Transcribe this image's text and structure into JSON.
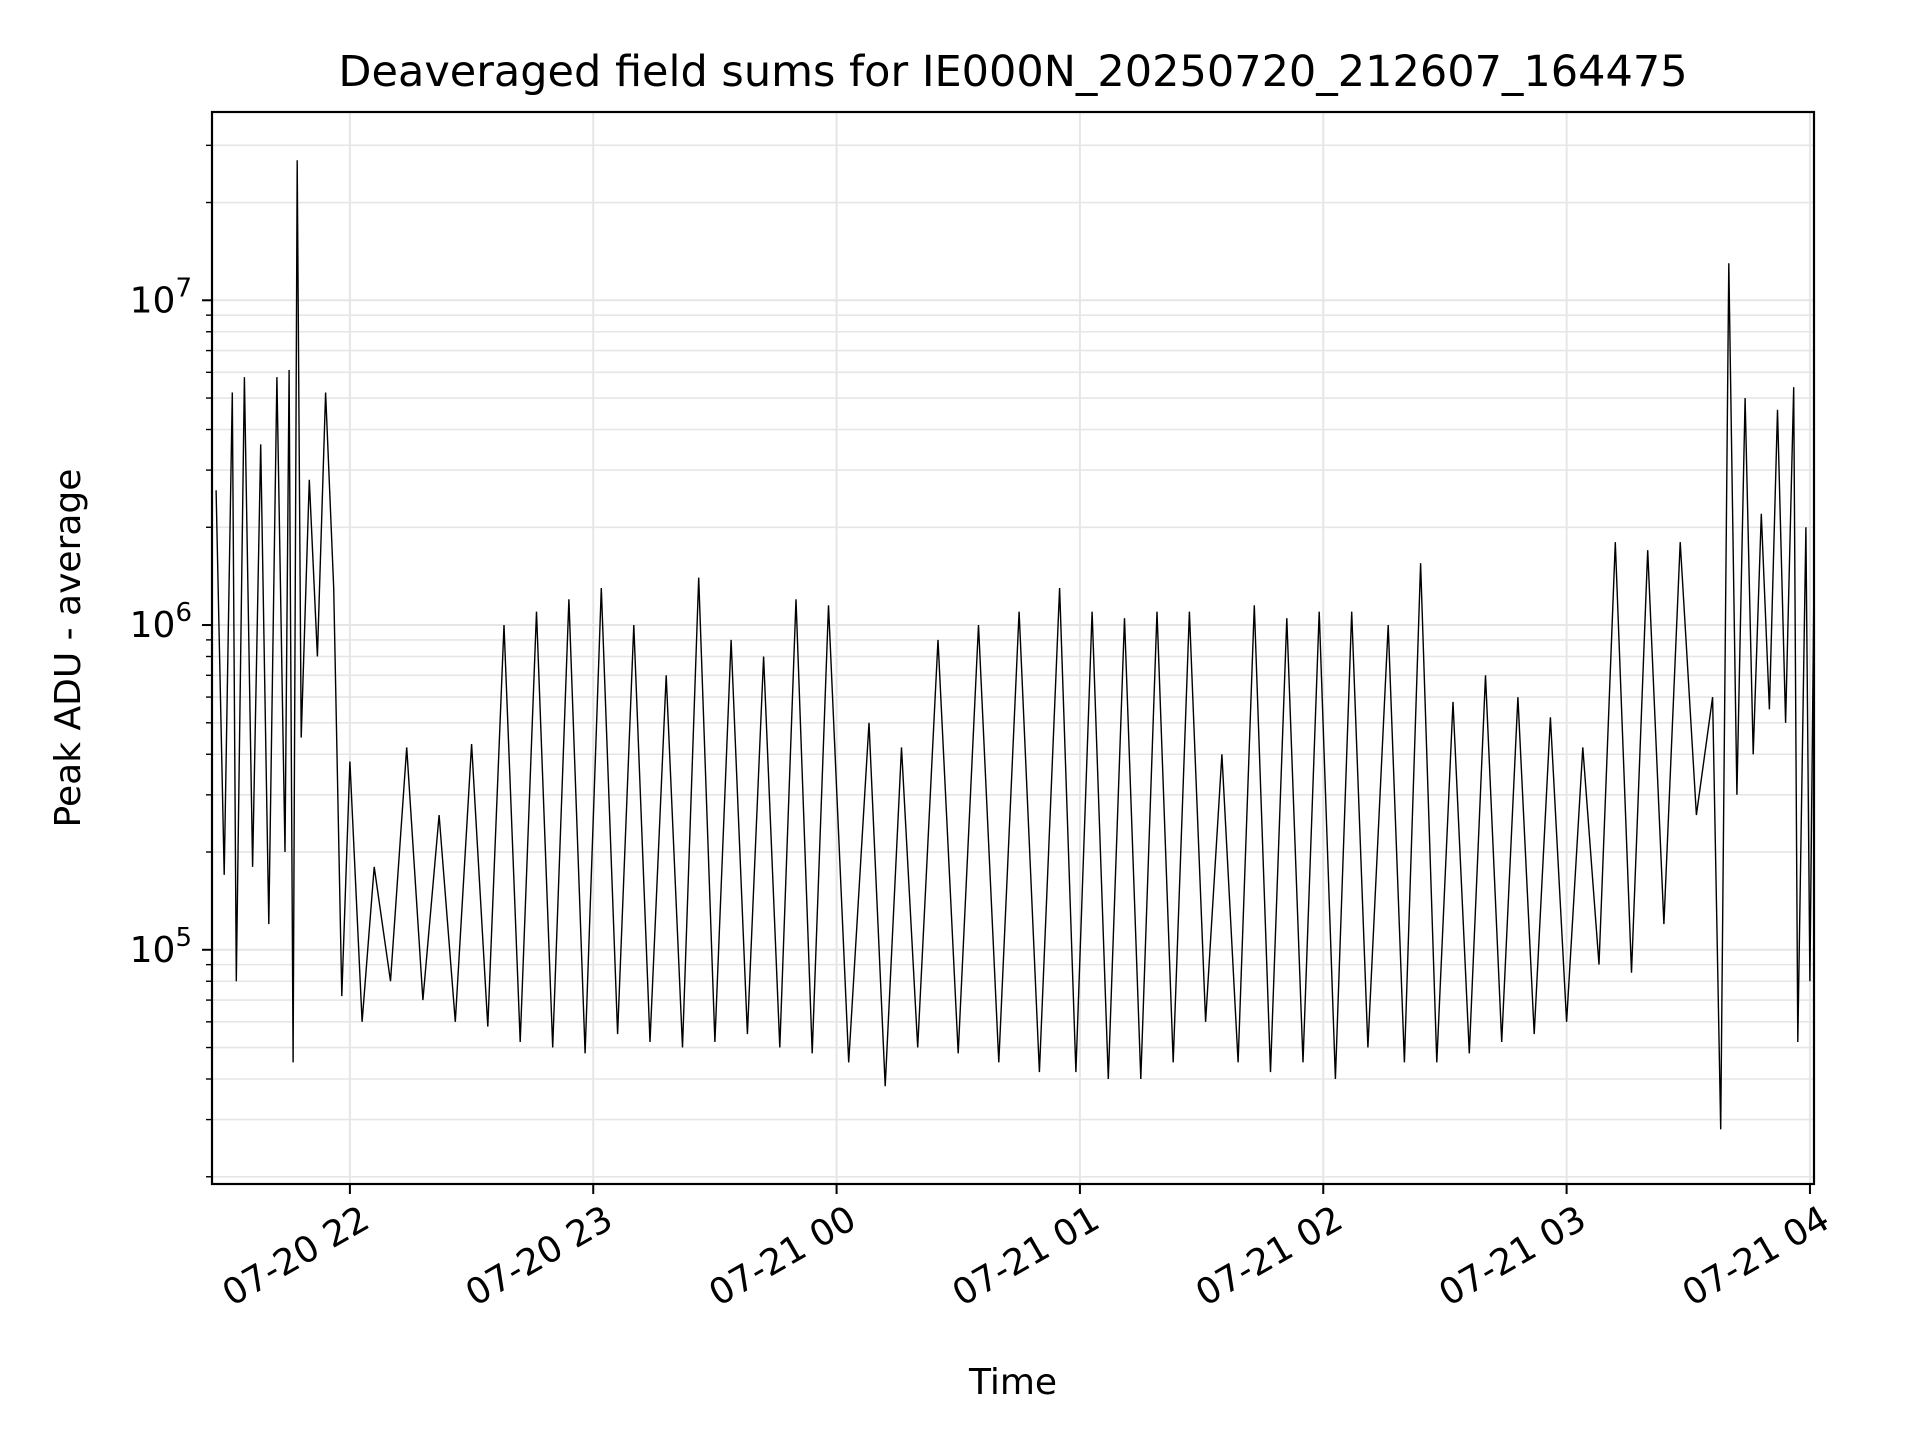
{
  "chart_data": {
    "type": "line",
    "title": "Deaveraged field sums for IE000N_20250720_212607_164475",
    "xlabel": "Time",
    "ylabel": "Peak ADU - average",
    "yscale": "log",
    "grid": true,
    "legend": "none",
    "line_color": "#000000",
    "grid_color": "#e6e6e6",
    "xlim": [
      "2025-07-20 21:26",
      "2025-07-21 04:01"
    ],
    "ylim": [
      19000,
      38000000
    ],
    "x_ticks": [
      {
        "value": "2025-07-20 22:00",
        "label": "07-20 22"
      },
      {
        "value": "2025-07-20 23:00",
        "label": "07-20 23"
      },
      {
        "value": "2025-07-21 00:00",
        "label": "07-21 00"
      },
      {
        "value": "2025-07-21 01:00",
        "label": "07-21 01"
      },
      {
        "value": "2025-07-21 02:00",
        "label": "07-21 02"
      },
      {
        "value": "2025-07-21 03:00",
        "label": "07-21 03"
      },
      {
        "value": "2025-07-21 04:00",
        "label": "07-21 04"
      }
    ],
    "y_ticks": [
      {
        "value": 100000,
        "base": "10",
        "exp": "5"
      },
      {
        "value": 1000000,
        "base": "10",
        "exp": "6"
      },
      {
        "value": 10000000,
        "base": "10",
        "exp": "7"
      }
    ],
    "series": [
      {
        "name": "",
        "points": [
          [
            "2025-07-20 21:27",
            2600000
          ],
          [
            "2025-07-20 21:29",
            170000
          ],
          [
            "2025-07-20 21:31",
            5200000
          ],
          [
            "2025-07-20 21:32",
            80000
          ],
          [
            "2025-07-20 21:34",
            5800000
          ],
          [
            "2025-07-20 21:36",
            180000
          ],
          [
            "2025-07-20 21:38",
            3600000
          ],
          [
            "2025-07-20 21:40",
            120000
          ],
          [
            "2025-07-20 21:42",
            5800000
          ],
          [
            "2025-07-20 21:44",
            200000
          ],
          [
            "2025-07-20 21:45",
            6100000
          ],
          [
            "2025-07-20 21:46",
            45000
          ],
          [
            "2025-07-20 21:47",
            27000000
          ],
          [
            "2025-07-20 21:48",
            450000
          ],
          [
            "2025-07-20 21:50",
            2800000
          ],
          [
            "2025-07-20 21:52",
            800000
          ],
          [
            "2025-07-20 21:54",
            5200000
          ],
          [
            "2025-07-20 21:56",
            1300000
          ],
          [
            "2025-07-20 21:58",
            72000
          ],
          [
            "2025-07-20 22:00",
            380000
          ],
          [
            "2025-07-20 22:03",
            60000
          ],
          [
            "2025-07-20 22:06",
            180000
          ],
          [
            "2025-07-20 22:10",
            80000
          ],
          [
            "2025-07-20 22:14",
            420000
          ],
          [
            "2025-07-20 22:18",
            70000
          ],
          [
            "2025-07-20 22:22",
            260000
          ],
          [
            "2025-07-20 22:26",
            60000
          ],
          [
            "2025-07-20 22:30",
            430000
          ],
          [
            "2025-07-20 22:34",
            58000
          ],
          [
            "2025-07-20 22:38",
            1000000
          ],
          [
            "2025-07-20 22:42",
            52000
          ],
          [
            "2025-07-20 22:46",
            1100000
          ],
          [
            "2025-07-20 22:50",
            50000
          ],
          [
            "2025-07-20 22:54",
            1200000
          ],
          [
            "2025-07-20 22:58",
            48000
          ],
          [
            "2025-07-20 23:02",
            1300000
          ],
          [
            "2025-07-20 23:06",
            55000
          ],
          [
            "2025-07-20 23:10",
            1000000
          ],
          [
            "2025-07-20 23:14",
            52000
          ],
          [
            "2025-07-20 23:18",
            700000
          ],
          [
            "2025-07-20 23:22",
            50000
          ],
          [
            "2025-07-20 23:26",
            1400000
          ],
          [
            "2025-07-20 23:30",
            52000
          ],
          [
            "2025-07-20 23:34",
            900000
          ],
          [
            "2025-07-20 23:38",
            55000
          ],
          [
            "2025-07-20 23:42",
            800000
          ],
          [
            "2025-07-20 23:46",
            50000
          ],
          [
            "2025-07-20 23:50",
            1200000
          ],
          [
            "2025-07-20 23:54",
            48000
          ],
          [
            "2025-07-20 23:58",
            1150000
          ],
          [
            "2025-07-21 00:03",
            45000
          ],
          [
            "2025-07-21 00:08",
            500000
          ],
          [
            "2025-07-21 00:12",
            38000
          ],
          [
            "2025-07-21 00:16",
            420000
          ],
          [
            "2025-07-21 00:20",
            50000
          ],
          [
            "2025-07-21 00:25",
            900000
          ],
          [
            "2025-07-21 00:30",
            48000
          ],
          [
            "2025-07-21 00:35",
            1000000
          ],
          [
            "2025-07-21 00:40",
            45000
          ],
          [
            "2025-07-21 00:45",
            1100000
          ],
          [
            "2025-07-21 00:50",
            42000
          ],
          [
            "2025-07-21 00:55",
            1300000
          ],
          [
            "2025-07-21 00:59",
            42000
          ],
          [
            "2025-07-21 01:03",
            1100000
          ],
          [
            "2025-07-21 01:07",
            40000
          ],
          [
            "2025-07-21 01:11",
            1050000
          ],
          [
            "2025-07-21 01:15",
            40000
          ],
          [
            "2025-07-21 01:19",
            1100000
          ],
          [
            "2025-07-21 01:23",
            45000
          ],
          [
            "2025-07-21 01:27",
            1100000
          ],
          [
            "2025-07-21 01:31",
            60000
          ],
          [
            "2025-07-21 01:35",
            400000
          ],
          [
            "2025-07-21 01:39",
            45000
          ],
          [
            "2025-07-21 01:43",
            1150000
          ],
          [
            "2025-07-21 01:47",
            42000
          ],
          [
            "2025-07-21 01:51",
            1050000
          ],
          [
            "2025-07-21 01:55",
            45000
          ],
          [
            "2025-07-21 01:59",
            1100000
          ],
          [
            "2025-07-21 02:03",
            40000
          ],
          [
            "2025-07-21 02:07",
            1100000
          ],
          [
            "2025-07-21 02:11",
            50000
          ],
          [
            "2025-07-21 02:16",
            1000000
          ],
          [
            "2025-07-21 02:20",
            45000
          ],
          [
            "2025-07-21 02:24",
            1550000
          ],
          [
            "2025-07-21 02:28",
            45000
          ],
          [
            "2025-07-21 02:32",
            580000
          ],
          [
            "2025-07-21 02:36",
            48000
          ],
          [
            "2025-07-21 02:40",
            700000
          ],
          [
            "2025-07-21 02:44",
            52000
          ],
          [
            "2025-07-21 02:48",
            600000
          ],
          [
            "2025-07-21 02:52",
            55000
          ],
          [
            "2025-07-21 02:56",
            520000
          ],
          [
            "2025-07-21 03:00",
            60000
          ],
          [
            "2025-07-21 03:04",
            420000
          ],
          [
            "2025-07-21 03:08",
            90000
          ],
          [
            "2025-07-21 03:12",
            1800000
          ],
          [
            "2025-07-21 03:16",
            85000
          ],
          [
            "2025-07-21 03:20",
            1700000
          ],
          [
            "2025-07-21 03:24",
            120000
          ],
          [
            "2025-07-21 03:28",
            1800000
          ],
          [
            "2025-07-21 03:32",
            260000
          ],
          [
            "2025-07-21 03:36",
            600000
          ],
          [
            "2025-07-21 03:38",
            28000
          ],
          [
            "2025-07-21 03:40",
            13000000
          ],
          [
            "2025-07-21 03:42",
            300000
          ],
          [
            "2025-07-21 03:44",
            5000000
          ],
          [
            "2025-07-21 03:46",
            400000
          ],
          [
            "2025-07-21 03:48",
            2200000
          ],
          [
            "2025-07-21 03:50",
            550000
          ],
          [
            "2025-07-21 03:52",
            4600000
          ],
          [
            "2025-07-21 03:54",
            500000
          ],
          [
            "2025-07-21 03:56",
            5400000
          ],
          [
            "2025-07-21 03:57",
            52000
          ],
          [
            "2025-07-21 03:59",
            2000000
          ],
          [
            "2025-07-21 04:00",
            80000
          ],
          [
            "2025-07-21 04:01",
            1400000
          ]
        ]
      }
    ]
  }
}
